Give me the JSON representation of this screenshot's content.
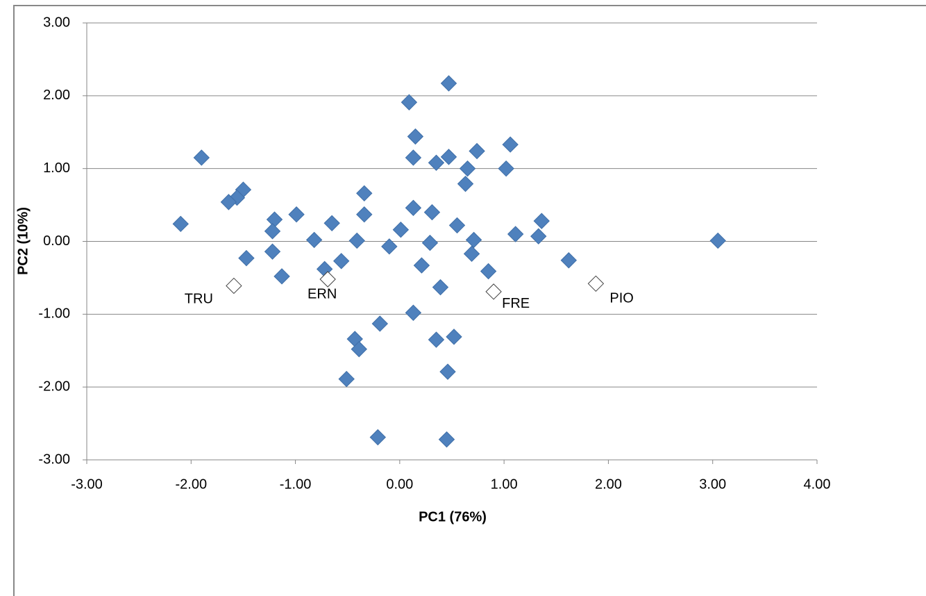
{
  "chart_data": {
    "type": "scatter",
    "x_label": "PC1 (76%)",
    "y_label": "PC2 (10%)",
    "xlim": [
      -3,
      4
    ],
    "ylim": [
      -3,
      3
    ],
    "xticks": [
      {
        "value": -3,
        "label": "-3.00"
      },
      {
        "value": -2,
        "label": "-2.00"
      },
      {
        "value": -1,
        "label": "-1.00"
      },
      {
        "value": 0,
        "label": "0.00"
      },
      {
        "value": 1,
        "label": "1.00"
      },
      {
        "value": 2,
        "label": "2.00"
      },
      {
        "value": 3,
        "label": "3.00"
      },
      {
        "value": 4,
        "label": "4.00"
      }
    ],
    "yticks": [
      {
        "value": -3,
        "label": "-3.00"
      },
      {
        "value": -2,
        "label": "-2.00"
      },
      {
        "value": -1,
        "label": "-1.00"
      },
      {
        "value": 0,
        "label": "0.00"
      },
      {
        "value": 1,
        "label": "1.00"
      },
      {
        "value": 2,
        "label": "2.00"
      },
      {
        "value": 3,
        "label": "3.00"
      }
    ],
    "grid": true,
    "series": [
      {
        "color": "#4f81bd",
        "marker": "filled",
        "x": [
          3.05,
          0.47,
          0.09,
          0.15,
          -1.9,
          0.13,
          0.47,
          0.35,
          0.74,
          1.06,
          1.02,
          0.65,
          0.63,
          -1.5,
          -1.56,
          -1.64,
          -2.1,
          -0.34,
          -1.2,
          -1.22,
          -0.99,
          -0.65,
          -0.34,
          0.13,
          0.31,
          0.55,
          1.36,
          1.11,
          1.33,
          0.01,
          -0.82,
          -0.41,
          0.71,
          -0.1,
          0.29,
          -1.22,
          -1.47,
          -0.56,
          -0.72,
          0.21,
          0.69,
          0.85,
          1.62,
          -1.13,
          0.39,
          0.13,
          -0.19,
          -0.43,
          0.35,
          0.52,
          -0.39,
          -0.51,
          0.46,
          -0.21,
          0.45
        ],
        "values": [
          0.01,
          2.17,
          1.91,
          1.44,
          1.15,
          1.15,
          1.16,
          1.08,
          1.24,
          1.33,
          1.0,
          1.0,
          0.79,
          0.71,
          0.6,
          0.54,
          0.24,
          0.66,
          0.3,
          0.14,
          0.37,
          0.25,
          0.37,
          0.46,
          0.4,
          0.22,
          0.28,
          0.1,
          0.07,
          0.16,
          0.02,
          0.01,
          0.02,
          -0.07,
          -0.02,
          -0.14,
          -0.23,
          -0.27,
          -0.38,
          -0.33,
          -0.17,
          -0.41,
          -0.26,
          -0.48,
          -0.63,
          -0.98,
          -1.13,
          -1.34,
          -1.35,
          -1.31,
          -1.48,
          -1.89,
          -1.79,
          -2.69,
          -2.72
        ]
      },
      {
        "color": "#ffffff",
        "stroke": "#404040",
        "marker": "hollow",
        "x": [
          -1.59,
          -0.69,
          0.9,
          1.88
        ],
        "values": [
          -0.61,
          -0.52,
          -0.69,
          -0.58
        ],
        "labels": [
          "TRU",
          "ERN",
          "FRE",
          "PIO"
        ]
      }
    ]
  }
}
